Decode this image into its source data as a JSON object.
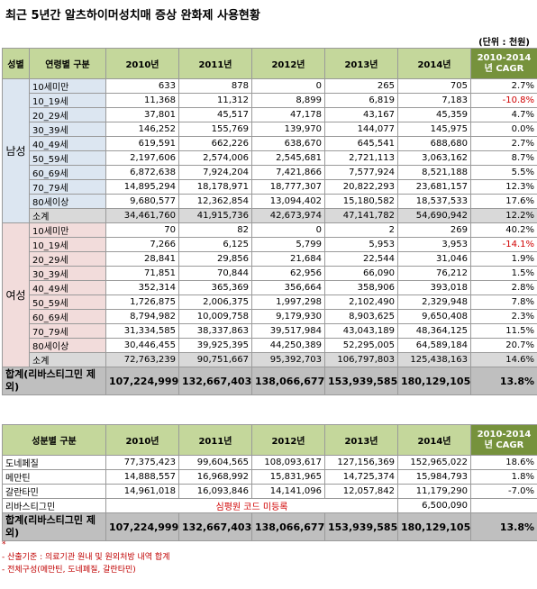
{
  "title": "최근 5년간 알츠하이머성치매 증상 완화제 사용현황",
  "unit": "(단위 : 천원)",
  "table1": {
    "headers": [
      "성별",
      "연령별 구분",
      "2010년",
      "2011년",
      "2012년",
      "2013년",
      "2014년",
      "2010-2014년 CAGR"
    ],
    "male_label": "남성",
    "female_label": "여성",
    "male_rows": [
      {
        "label": "10세미만",
        "v": [
          "633",
          "878",
          "0",
          "265",
          "705"
        ],
        "cagr": "2.7%"
      },
      {
        "label": "10_19세",
        "v": [
          "11,368",
          "11,312",
          "8,899",
          "6,819",
          "7,183"
        ],
        "cagr": "-10.8%"
      },
      {
        "label": "20_29세",
        "v": [
          "37,801",
          "45,517",
          "47,178",
          "43,167",
          "45,359"
        ],
        "cagr": "4.7%"
      },
      {
        "label": "30_39세",
        "v": [
          "146,252",
          "155,769",
          "139,970",
          "144,077",
          "145,975"
        ],
        "cagr": "0.0%"
      },
      {
        "label": "40_49세",
        "v": [
          "619,591",
          "662,226",
          "638,670",
          "645,541",
          "688,680"
        ],
        "cagr": "2.7%"
      },
      {
        "label": "50_59세",
        "v": [
          "2,197,606",
          "2,574,006",
          "2,545,681",
          "2,721,113",
          "3,063,162"
        ],
        "cagr": "8.7%"
      },
      {
        "label": "60_69세",
        "v": [
          "6,872,638",
          "7,924,204",
          "7,421,866",
          "7,577,924",
          "8,521,188"
        ],
        "cagr": "5.5%"
      },
      {
        "label": "70_79세",
        "v": [
          "14,895,294",
          "18,178,971",
          "18,777,307",
          "20,822,293",
          "23,681,157"
        ],
        "cagr": "12.3%"
      },
      {
        "label": "80세이상",
        "v": [
          "9,680,577",
          "12,362,854",
          "13,094,402",
          "15,180,582",
          "18,537,533"
        ],
        "cagr": "17.6%"
      },
      {
        "label": "소계",
        "v": [
          "34,461,760",
          "41,915,736",
          "42,673,974",
          "47,141,782",
          "54,690,942"
        ],
        "cagr": "12.2%"
      }
    ],
    "female_rows": [
      {
        "label": "10세미만",
        "v": [
          "70",
          "82",
          "0",
          "2",
          "269"
        ],
        "cagr": "40.2%"
      },
      {
        "label": "10_19세",
        "v": [
          "7,266",
          "6,125",
          "5,799",
          "5,953",
          "3,953"
        ],
        "cagr": "-14.1%"
      },
      {
        "label": "20_29세",
        "v": [
          "28,841",
          "29,856",
          "21,684",
          "22,544",
          "31,046"
        ],
        "cagr": "1.9%"
      },
      {
        "label": "30_39세",
        "v": [
          "71,851",
          "70,844",
          "62,956",
          "66,090",
          "76,212"
        ],
        "cagr": "1.5%"
      },
      {
        "label": "40_49세",
        "v": [
          "352,314",
          "365,369",
          "356,664",
          "358,906",
          "393,018"
        ],
        "cagr": "2.8%"
      },
      {
        "label": "50_59세",
        "v": [
          "1,726,875",
          "2,006,375",
          "1,997,298",
          "2,102,490",
          "2,329,948"
        ],
        "cagr": "7.8%"
      },
      {
        "label": "60_69세",
        "v": [
          "8,794,982",
          "10,009,758",
          "9,179,930",
          "8,903,625",
          "9,650,408"
        ],
        "cagr": "2.3%"
      },
      {
        "label": "70_79세",
        "v": [
          "31,334,585",
          "38,337,863",
          "39,517,984",
          "43,043,189",
          "48,364,125"
        ],
        "cagr": "11.5%"
      },
      {
        "label": "80세이상",
        "v": [
          "30,446,455",
          "39,925,395",
          "44,250,389",
          "52,295,005",
          "64,589,184"
        ],
        "cagr": "20.7%"
      },
      {
        "label": "소계",
        "v": [
          "72,763,239",
          "90,751,667",
          "95,392,703",
          "106,797,803",
          "125,438,163"
        ],
        "cagr": "14.6%"
      }
    ],
    "total": {
      "label": "합계(리바스티그민 제외)",
      "v": [
        "107,224,999",
        "132,667,403",
        "138,066,677",
        "153,939,585",
        "180,129,105"
      ],
      "cagr": "13.8%"
    }
  },
  "table2": {
    "headers": [
      "성분별 구분",
      "2010년",
      "2011년",
      "2012년",
      "2013년",
      "2014년",
      "2010-2014년 CAGR"
    ],
    "rows": [
      {
        "label": "도네페질",
        "v": [
          "77,375,423",
          "99,604,565",
          "108,093,617",
          "127,156,369",
          "152,965,022"
        ],
        "cagr": "18.6%"
      },
      {
        "label": "메만틴",
        "v": [
          "14,888,557",
          "16,968,992",
          "15,831,965",
          "14,725,374",
          "15,984,793"
        ],
        "cagr": "1.8%"
      },
      {
        "label": "갈란타민",
        "v": [
          "14,961,018",
          "16,093,846",
          "14,141,096",
          "12,057,842",
          "11,179,290"
        ],
        "cagr": "-7.0%"
      }
    ],
    "rivastigmine": {
      "label": "리바스티그민",
      "note": "심평원 코드 미등록",
      "v2014": "6,500,090"
    },
    "total": {
      "label": "합계(리바스티그민 제외)",
      "v": [
        "107,224,999",
        "132,667,403",
        "138,066,677",
        "153,939,585",
        "180,129,105"
      ],
      "cagr": "13.8%"
    }
  },
  "notes": [
    "*",
    "- 산출기준 : 의료기관 원내 및 원외처방 내역 합계",
    "- 전체구성(메만틴, 도네페질, 갈란타민)"
  ]
}
